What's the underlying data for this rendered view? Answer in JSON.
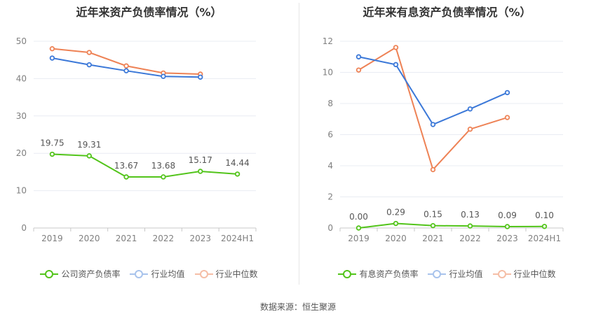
{
  "chart_data": [
    {
      "type": "line",
      "title": "近年来资产负债率情况（%）",
      "categories": [
        "2019",
        "2020",
        "2021",
        "2022",
        "2023",
        "2024H1"
      ],
      "ylim": [
        0,
        50
      ],
      "yticks": [
        0,
        10,
        20,
        30,
        40,
        50
      ],
      "grid": true,
      "legend": "bottom",
      "series": [
        {
          "name": "公司资产负债率",
          "color": "#52c41a",
          "values": [
            19.75,
            19.31,
            13.67,
            13.68,
            15.17,
            14.44
          ],
          "labels": [
            "19.75",
            "19.31",
            "13.67",
            "13.68",
            "15.17",
            "14.44"
          ]
        },
        {
          "name": "行业均值",
          "color": "#3b78d8",
          "values": [
            45.5,
            43.7,
            42.1,
            40.6,
            40.4,
            null
          ]
        },
        {
          "name": "行业中位数",
          "color": "#ee8255",
          "values": [
            48.0,
            47.0,
            43.4,
            41.5,
            41.2,
            null
          ]
        }
      ]
    },
    {
      "type": "line",
      "title": "近年来有息资产负债率情况（%）",
      "categories": [
        "2019",
        "2020",
        "2021",
        "2022",
        "2023",
        "2024H1"
      ],
      "ylim": [
        0,
        12
      ],
      "yticks": [
        0,
        2,
        4,
        6,
        8,
        10,
        12
      ],
      "grid": true,
      "legend": "bottom",
      "series": [
        {
          "name": "有息资产负债率",
          "color": "#52c41a",
          "values": [
            0.0,
            0.29,
            0.15,
            0.13,
            0.09,
            0.1
          ],
          "labels": [
            "0.00",
            "0.29",
            "0.15",
            "0.13",
            "0.09",
            "0.10"
          ]
        },
        {
          "name": "行业均值",
          "color": "#3b78d8",
          "values": [
            11.0,
            10.5,
            6.65,
            7.65,
            8.7,
            null
          ]
        },
        {
          "name": "行业中位数",
          "color": "#ee8255",
          "values": [
            10.15,
            11.6,
            3.75,
            6.35,
            7.1,
            null
          ]
        }
      ]
    }
  ],
  "source": "数据来源：恒生聚源"
}
